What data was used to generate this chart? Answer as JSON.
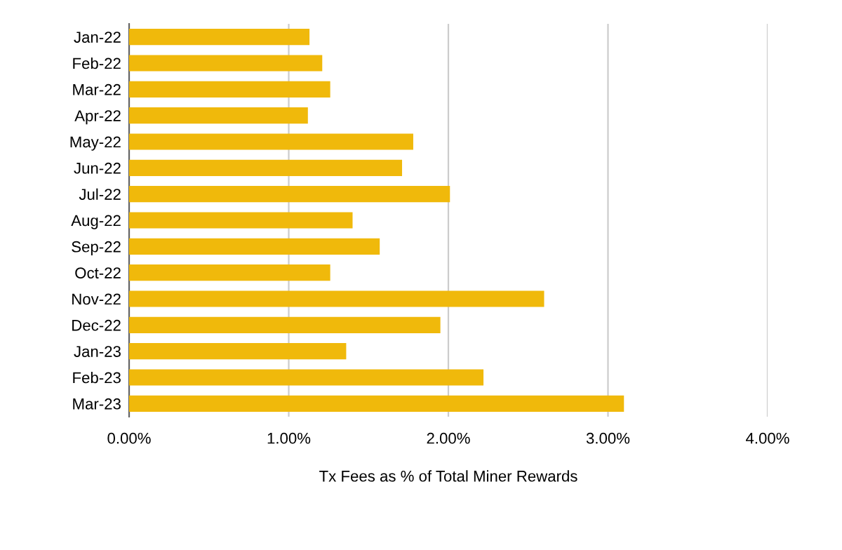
{
  "chart_data": {
    "type": "bar",
    "orientation": "horizontal",
    "xlabel": "Tx Fees as % of Total Miner Rewards",
    "categories": [
      "Jan-22",
      "Feb-22",
      "Mar-22",
      "Apr-22",
      "May-22",
      "Jun-22",
      "Jul-22",
      "Aug-22",
      "Sep-22",
      "Oct-22",
      "Nov-22",
      "Dec-22",
      "Jan-23",
      "Feb-23",
      "Mar-23"
    ],
    "values": [
      1.13,
      1.21,
      1.26,
      1.12,
      1.78,
      1.71,
      2.01,
      1.4,
      1.57,
      1.26,
      2.6,
      1.95,
      1.36,
      2.22,
      3.1
    ],
    "color": "#f0b90b",
    "xlim": [
      0,
      4
    ],
    "xticks": [
      {
        "value": 0,
        "label": "0.00%"
      },
      {
        "value": 1,
        "label": "1.00%"
      },
      {
        "value": 2,
        "label": "2.00%"
      },
      {
        "value": 3,
        "label": "3.00%"
      },
      {
        "value": 4,
        "label": "4.00%"
      }
    ],
    "grid": "x"
  }
}
